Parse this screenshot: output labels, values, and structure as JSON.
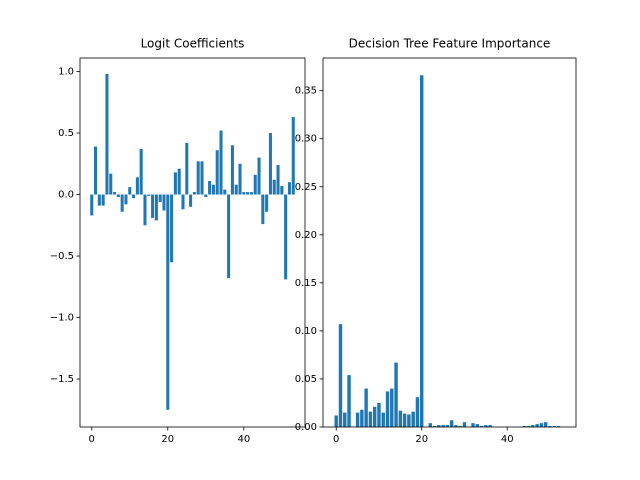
{
  "chart_data": [
    {
      "type": "bar",
      "title": "Logit Coefficients",
      "color": "#1f77b4",
      "x": [
        0,
        1,
        2,
        3,
        4,
        5,
        6,
        7,
        8,
        9,
        10,
        11,
        12,
        13,
        14,
        15,
        16,
        17,
        18,
        19,
        20,
        21,
        22,
        23,
        24,
        25,
        26,
        27,
        28,
        29,
        30,
        31,
        32,
        33,
        34,
        35,
        36,
        37,
        38,
        39,
        40,
        41,
        42,
        43,
        44,
        45,
        46,
        47,
        48,
        49,
        50,
        51,
        52,
        53
      ],
      "values": [
        -0.17,
        0.39,
        -0.09,
        -0.09,
        0.98,
        0.17,
        0.02,
        -0.02,
        -0.14,
        -0.08,
        0.06,
        -0.03,
        0.14,
        0.37,
        -0.25,
        -0.01,
        -0.19,
        -0.21,
        -0.06,
        -0.13,
        -1.75,
        -0.55,
        0.18,
        0.21,
        -0.12,
        0.42,
        -0.1,
        0.02,
        0.27,
        0.27,
        -0.02,
        0.11,
        0.08,
        0.36,
        0.52,
        0.04,
        -0.68,
        0.4,
        0.08,
        0.25,
        0.02,
        0.02,
        0.02,
        0.16,
        0.3,
        -0.24,
        -0.14,
        0.5,
        0.12,
        0.24,
        0.07,
        -0.69,
        0.1,
        0.63
      ],
      "xlim": [
        -3.09,
        56.09
      ],
      "ylim": [
        -1.89,
        1.11
      ],
      "xticks": [
        0,
        20,
        40
      ],
      "yticks": [
        {
          "value": -1.5,
          "label": "−1.5"
        },
        {
          "value": -1.0,
          "label": "−1.0"
        },
        {
          "value": -0.5,
          "label": "−0.5"
        },
        {
          "value": 0,
          "label": "0.0"
        },
        {
          "value": 0.5,
          "label": "0.5"
        },
        {
          "value": 1.0,
          "label": "1.0"
        }
      ]
    },
    {
      "type": "bar",
      "title": "Decision Tree Feature Importance",
      "color": "#1f77b4",
      "x": [
        0,
        1,
        2,
        3,
        4,
        5,
        6,
        7,
        8,
        9,
        10,
        11,
        12,
        13,
        14,
        15,
        16,
        17,
        18,
        19,
        20,
        21,
        22,
        23,
        24,
        25,
        26,
        27,
        28,
        29,
        30,
        31,
        32,
        33,
        34,
        35,
        36,
        37,
        38,
        39,
        40,
        41,
        42,
        43,
        44,
        45,
        46,
        47,
        48,
        49,
        50,
        51,
        52,
        53
      ],
      "values": [
        0.012,
        0.107,
        0.015,
        0.054,
        0,
        0.015,
        0.018,
        0.04,
        0.016,
        0.021,
        0.025,
        0.015,
        0.037,
        0.04,
        0.067,
        0.017,
        0.014,
        0.013,
        0.016,
        0.031,
        0.366,
        0,
        0.004,
        0.001,
        0.002,
        0.002,
        0.002,
        0.007,
        0.002,
        0.001,
        0.005,
        0,
        0.004,
        0.003,
        0.001,
        0.002,
        0.002,
        0,
        0,
        0,
        0,
        0,
        0,
        0,
        0.001,
        0.001,
        0.002,
        0.003,
        0.004,
        0.005,
        0.001,
        0.001,
        0.001,
        0
      ],
      "xlim": [
        -3.09,
        56.09
      ],
      "ylim": [
        0,
        0.384
      ],
      "xticks": [
        0,
        20,
        40
      ],
      "yticks": [
        {
          "value": 0,
          "label": "0.00"
        },
        {
          "value": 0.05,
          "label": "0.05"
        },
        {
          "value": 0.1,
          "label": "0.10"
        },
        {
          "value": 0.15,
          "label": "0.15"
        },
        {
          "value": 0.2,
          "label": "0.20"
        },
        {
          "value": 0.25,
          "label": "0.25"
        },
        {
          "value": 0.3,
          "label": "0.30"
        },
        {
          "value": 0.35,
          "label": "0.35"
        }
      ]
    }
  ]
}
